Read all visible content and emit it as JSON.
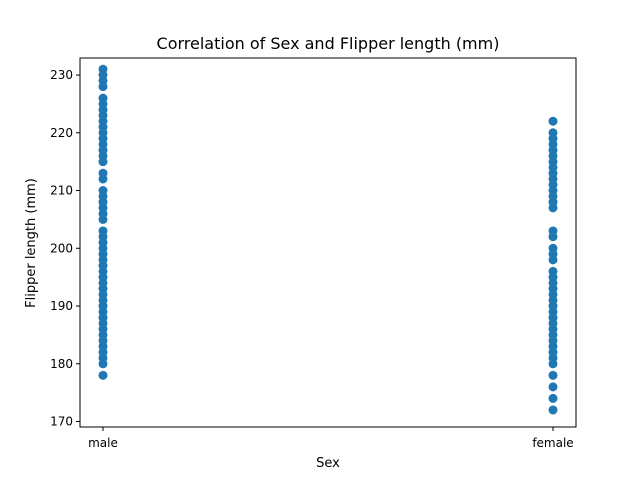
{
  "chart_data": {
    "type": "scatter",
    "title": "Correlation of Sex and Flipper length (mm)",
    "xlabel": "Sex",
    "ylabel": "Flipper length (mm)",
    "categories": [
      "male",
      "female"
    ],
    "yticks": [
      170,
      180,
      190,
      200,
      210,
      220,
      230
    ],
    "ylim": [
      169.05,
      232.95
    ],
    "grid": false,
    "legend": "none",
    "color": "#1f77b4",
    "series": [
      {
        "category": "male",
        "values": [
          178,
          180,
          181,
          182,
          183,
          184,
          185,
          186,
          187,
          188,
          189,
          190,
          191,
          192,
          193,
          194,
          195,
          196,
          197,
          198,
          199,
          200,
          201,
          202,
          203,
          205,
          206,
          207,
          208,
          209,
          210,
          212,
          213,
          215,
          216,
          217,
          218,
          219,
          220,
          221,
          222,
          223,
          224,
          225,
          226,
          228,
          229,
          230,
          231
        ]
      },
      {
        "category": "female",
        "values": [
          172,
          174,
          176,
          178,
          180,
          181,
          182,
          183,
          184,
          185,
          186,
          187,
          188,
          189,
          190,
          191,
          192,
          193,
          194,
          195,
          196,
          198,
          199,
          200,
          202,
          203,
          207,
          208,
          209,
          210,
          211,
          212,
          213,
          214,
          215,
          216,
          217,
          218,
          219,
          220,
          222
        ]
      }
    ]
  }
}
